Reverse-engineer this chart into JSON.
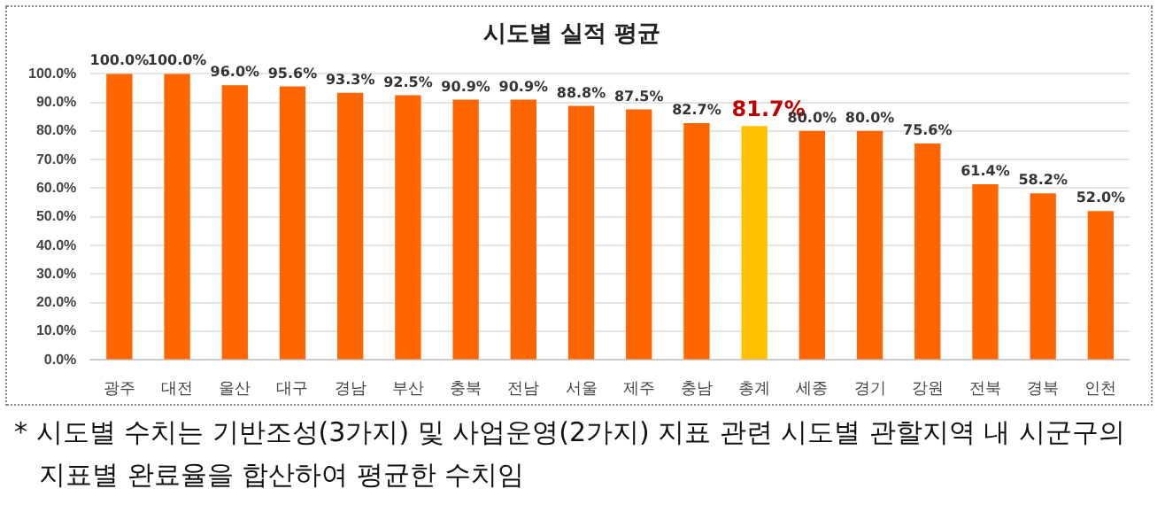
{
  "chart_data": {
    "type": "bar",
    "title": "시도별 실적 평균",
    "categories": [
      "광주",
      "대전",
      "울산",
      "대구",
      "경남",
      "부산",
      "충북",
      "전남",
      "서울",
      "제주",
      "충남",
      "총계",
      "세종",
      "경기",
      "강원",
      "전북",
      "경북",
      "인천"
    ],
    "values": [
      100,
      100,
      96,
      95.6,
      93.3,
      92.5,
      90.9,
      90.9,
      88.8,
      87.5,
      82.7,
      81.7,
      80,
      80,
      75.6,
      61.4,
      58.2,
      52
    ],
    "value_labels": [
      "100.0%",
      "100.0%",
      "96.0%",
      "95.6%",
      "93.3%",
      "92.5%",
      "90.9%",
      "90.9%",
      "88.8%",
      "87.5%",
      "82.7%",
      "81.7%",
      "80.0%",
      "80.0%",
      "75.6%",
      "61.4%",
      "58.2%",
      "52.0%"
    ],
    "colors": [
      "#ff6600",
      "#ff6600",
      "#ff6600",
      "#ff6600",
      "#ff6600",
      "#ff6600",
      "#ff6600",
      "#ff6600",
      "#ff6600",
      "#ff6600",
      "#ff6600",
      "#ffc000",
      "#ff6600",
      "#ff6600",
      "#ff6600",
      "#ff6600",
      "#ff6600",
      "#ff6600"
    ],
    "ylim": [
      0,
      100
    ],
    "yticks": [
      {
        "value": 0,
        "label": "0.0%"
      },
      {
        "value": 10,
        "label": "10.0%"
      },
      {
        "value": 20,
        "label": "20.0%"
      },
      {
        "value": 30,
        "label": "30.0%"
      },
      {
        "value": 40,
        "label": "40.0%"
      },
      {
        "value": 50,
        "label": "50.0%"
      },
      {
        "value": 60,
        "label": "60.0%"
      },
      {
        "value": 70,
        "label": "70.0%"
      },
      {
        "value": 80,
        "label": "80.0%"
      },
      {
        "value": 90,
        "label": "90.0%"
      },
      {
        "value": 100,
        "label": "100.0%"
      }
    ],
    "grid": "y",
    "legend": false,
    "annotations": [
      "* 시도별 수치는 기반조성(3가지) 및 사업운영(2가지) 지표 관련 시도별 관할지역 내 시군구의 지표별 완료율을 합산하여 평균한 수치임"
    ]
  }
}
